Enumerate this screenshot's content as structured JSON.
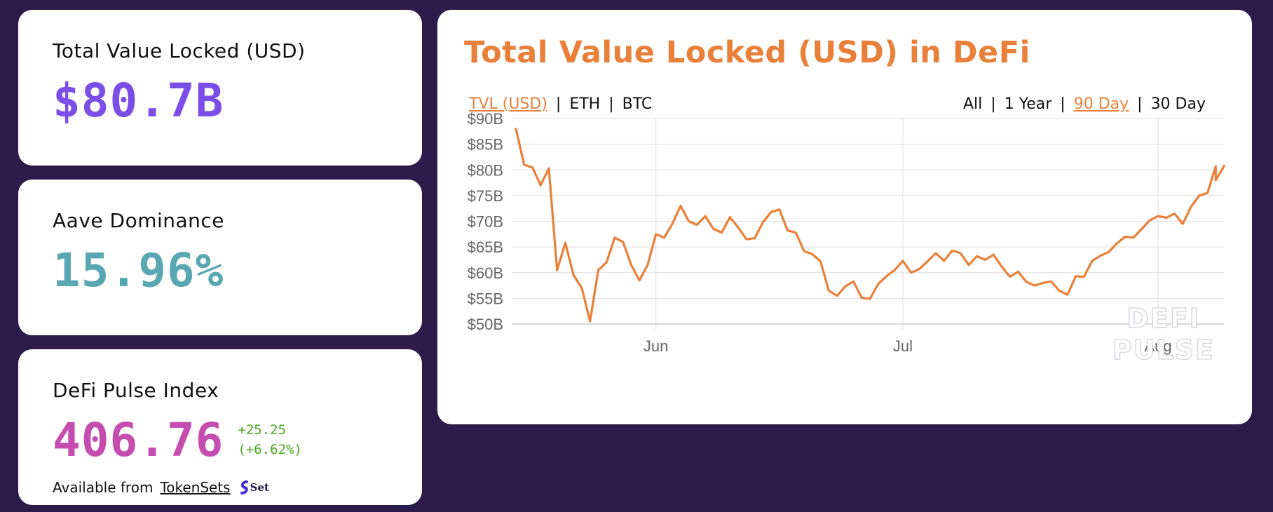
{
  "colors": {
    "background": "#2c1b4b",
    "accent_orange": "#e8803a",
    "tvl_purple": "#7b4ee8",
    "aave_teal": "#5aa7b4",
    "dpi_pink": "#c54db0",
    "positive_green": "#4aa820"
  },
  "cards": {
    "tvl": {
      "label": "Total Value Locked (USD)",
      "value": "$80.7B"
    },
    "aave": {
      "label": "Aave Dominance",
      "value": "15.96%"
    },
    "dpi": {
      "label": "DeFi Pulse Index",
      "value": "406.76",
      "change_abs": "+25.25",
      "change_pct": "(+6.62%)",
      "available_prefix": "Available from",
      "available_link": "TokenSets",
      "logo_icon": "set-logo-icon",
      "logo_text": "Set"
    }
  },
  "chart_panel": {
    "title": "Total Value Locked (USD) in DeFi",
    "metric_options": [
      "TVL (USD)",
      "ETH",
      "BTC"
    ],
    "metric_active": "TVL (USD)",
    "range_options": [
      "All",
      "1 Year",
      "90 Day",
      "30 Day"
    ],
    "range_active": "90 Day",
    "watermark": [
      "DEFI",
      "PULSE"
    ]
  },
  "chart_data": {
    "type": "line",
    "title": "Total Value Locked (USD) in DeFi",
    "xlabel": "",
    "ylabel": "",
    "ylim": [
      50,
      90
    ],
    "y_unit": "billion USD",
    "y_ticks": [
      50,
      55,
      60,
      65,
      70,
      75,
      80,
      85,
      90
    ],
    "y_tick_labels": [
      "$50B",
      "$55B",
      "$60B",
      "$65B",
      "$70B",
      "$75B",
      "$80B",
      "$85B",
      "$90B"
    ],
    "x_ticks": [
      "2021-06-01",
      "2021-07-01",
      "2021-08-01"
    ],
    "x_tick_labels": [
      "Jun",
      "Jul",
      "Aug"
    ],
    "xlim": [
      "2021-05-15",
      "2021-08-09"
    ],
    "grid": true,
    "series": [
      {
        "color": "#e8803a",
        "points": [
          [
            "2021-05-15",
            88.0
          ],
          [
            "2021-05-16",
            81.0
          ],
          [
            "2021-05-17",
            80.5
          ],
          [
            "2021-05-18",
            77.0
          ],
          [
            "2021-05-19",
            80.3
          ],
          [
            "2021-05-20",
            60.5
          ],
          [
            "2021-05-21",
            65.8
          ],
          [
            "2021-05-22",
            59.5
          ],
          [
            "2021-05-23",
            57.0
          ],
          [
            "2021-05-24",
            50.5
          ],
          [
            "2021-05-25",
            60.5
          ],
          [
            "2021-05-26",
            62.0
          ],
          [
            "2021-05-27",
            66.8
          ],
          [
            "2021-05-28",
            66.0
          ],
          [
            "2021-05-29",
            61.5
          ],
          [
            "2021-05-30",
            58.5
          ],
          [
            "2021-05-31",
            61.5
          ],
          [
            "2021-06-01",
            67.5
          ],
          [
            "2021-06-02",
            66.8
          ],
          [
            "2021-06-03",
            69.5
          ],
          [
            "2021-06-04",
            73.0
          ],
          [
            "2021-06-05",
            70.0
          ],
          [
            "2021-06-06",
            69.3
          ],
          [
            "2021-06-07",
            71.0
          ],
          [
            "2021-06-08",
            68.5
          ],
          [
            "2021-06-09",
            67.8
          ],
          [
            "2021-06-10",
            70.8
          ],
          [
            "2021-06-11",
            68.8
          ],
          [
            "2021-06-12",
            66.5
          ],
          [
            "2021-06-13",
            66.7
          ],
          [
            "2021-06-14",
            69.8
          ],
          [
            "2021-06-15",
            71.8
          ],
          [
            "2021-06-16",
            72.3
          ],
          [
            "2021-06-17",
            68.2
          ],
          [
            "2021-06-18",
            67.8
          ],
          [
            "2021-06-19",
            64.2
          ],
          [
            "2021-06-20",
            63.6
          ],
          [
            "2021-06-21",
            62.2
          ],
          [
            "2021-06-22",
            56.5
          ],
          [
            "2021-06-23",
            55.5
          ],
          [
            "2021-06-24",
            57.3
          ],
          [
            "2021-06-25",
            58.3
          ],
          [
            "2021-06-26",
            55.1
          ],
          [
            "2021-06-27",
            54.9
          ],
          [
            "2021-06-28",
            57.8
          ],
          [
            "2021-06-29",
            59.3
          ],
          [
            "2021-06-30",
            60.5
          ],
          [
            "2021-07-01",
            62.3
          ],
          [
            "2021-07-02",
            60.0
          ],
          [
            "2021-07-03",
            60.7
          ],
          [
            "2021-07-04",
            62.2
          ],
          [
            "2021-07-05",
            63.8
          ],
          [
            "2021-07-06",
            62.3
          ],
          [
            "2021-07-07",
            64.3
          ],
          [
            "2021-07-08",
            63.8
          ],
          [
            "2021-07-09",
            61.5
          ],
          [
            "2021-07-10",
            63.2
          ],
          [
            "2021-07-11",
            62.5
          ],
          [
            "2021-07-12",
            63.5
          ],
          [
            "2021-07-13",
            61.2
          ],
          [
            "2021-07-14",
            59.2
          ],
          [
            "2021-07-15",
            60.2
          ],
          [
            "2021-07-16",
            58.2
          ],
          [
            "2021-07-17",
            57.5
          ],
          [
            "2021-07-18",
            58.0
          ],
          [
            "2021-07-19",
            58.3
          ],
          [
            "2021-07-20",
            56.5
          ],
          [
            "2021-07-21",
            55.7
          ],
          [
            "2021-07-22",
            59.3
          ],
          [
            "2021-07-23",
            59.2
          ],
          [
            "2021-07-24",
            62.3
          ],
          [
            "2021-07-25",
            63.3
          ],
          [
            "2021-07-26",
            64.0
          ],
          [
            "2021-07-27",
            65.7
          ],
          [
            "2021-07-28",
            67.0
          ],
          [
            "2021-07-29",
            66.8
          ],
          [
            "2021-07-30",
            68.5
          ],
          [
            "2021-07-31",
            70.2
          ],
          [
            "2021-08-01",
            71.0
          ],
          [
            "2021-08-02",
            70.7
          ],
          [
            "2021-08-03",
            71.5
          ],
          [
            "2021-08-04",
            69.5
          ],
          [
            "2021-08-05",
            72.8
          ],
          [
            "2021-08-06",
            75.0
          ],
          [
            "2021-08-07",
            75.5
          ],
          [
            "2021-08-08",
            80.7
          ],
          [
            "2021-08-08",
            78.0
          ],
          [
            "2021-08-09",
            80.7
          ],
          [
            "2021-08-09",
            80.8
          ]
        ]
      }
    ]
  }
}
